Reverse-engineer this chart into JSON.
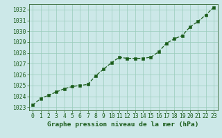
{
  "x": [
    0,
    1,
    2,
    3,
    4,
    5,
    6,
    7,
    8,
    9,
    10,
    11,
    12,
    13,
    14,
    15,
    16,
    17,
    18,
    19,
    20,
    21,
    22,
    23
  ],
  "y": [
    1023.2,
    1023.8,
    1024.1,
    1024.4,
    1024.7,
    1024.9,
    1025.0,
    1025.1,
    1025.9,
    1026.5,
    1027.1,
    1027.6,
    1027.5,
    1027.5,
    1027.5,
    1027.6,
    1028.1,
    1028.9,
    1029.3,
    1029.6,
    1030.4,
    1030.9,
    1031.5,
    1032.2
  ],
  "line_color": "#1a5c1a",
  "marker": "s",
  "marker_size": 2.2,
  "bg_color": "#cce8e8",
  "grid_color": "#99ccbb",
  "ylim": [
    1022.7,
    1032.5
  ],
  "xlim": [
    -0.5,
    23.5
  ],
  "yticks": [
    1023,
    1024,
    1025,
    1026,
    1027,
    1028,
    1029,
    1030,
    1031,
    1032
  ],
  "xticks": [
    0,
    1,
    2,
    3,
    4,
    5,
    6,
    7,
    8,
    9,
    10,
    11,
    12,
    13,
    14,
    15,
    16,
    17,
    18,
    19,
    20,
    21,
    22,
    23
  ],
  "xlabel": "Graphe pression niveau de la mer (hPa)",
  "xlabel_color": "#1a5c1a",
  "tick_color": "#1a5c1a",
  "axis_color": "#336633",
  "xlabel_fontsize": 6.8,
  "tick_fontsize": 5.8,
  "linewidth": 0.9
}
